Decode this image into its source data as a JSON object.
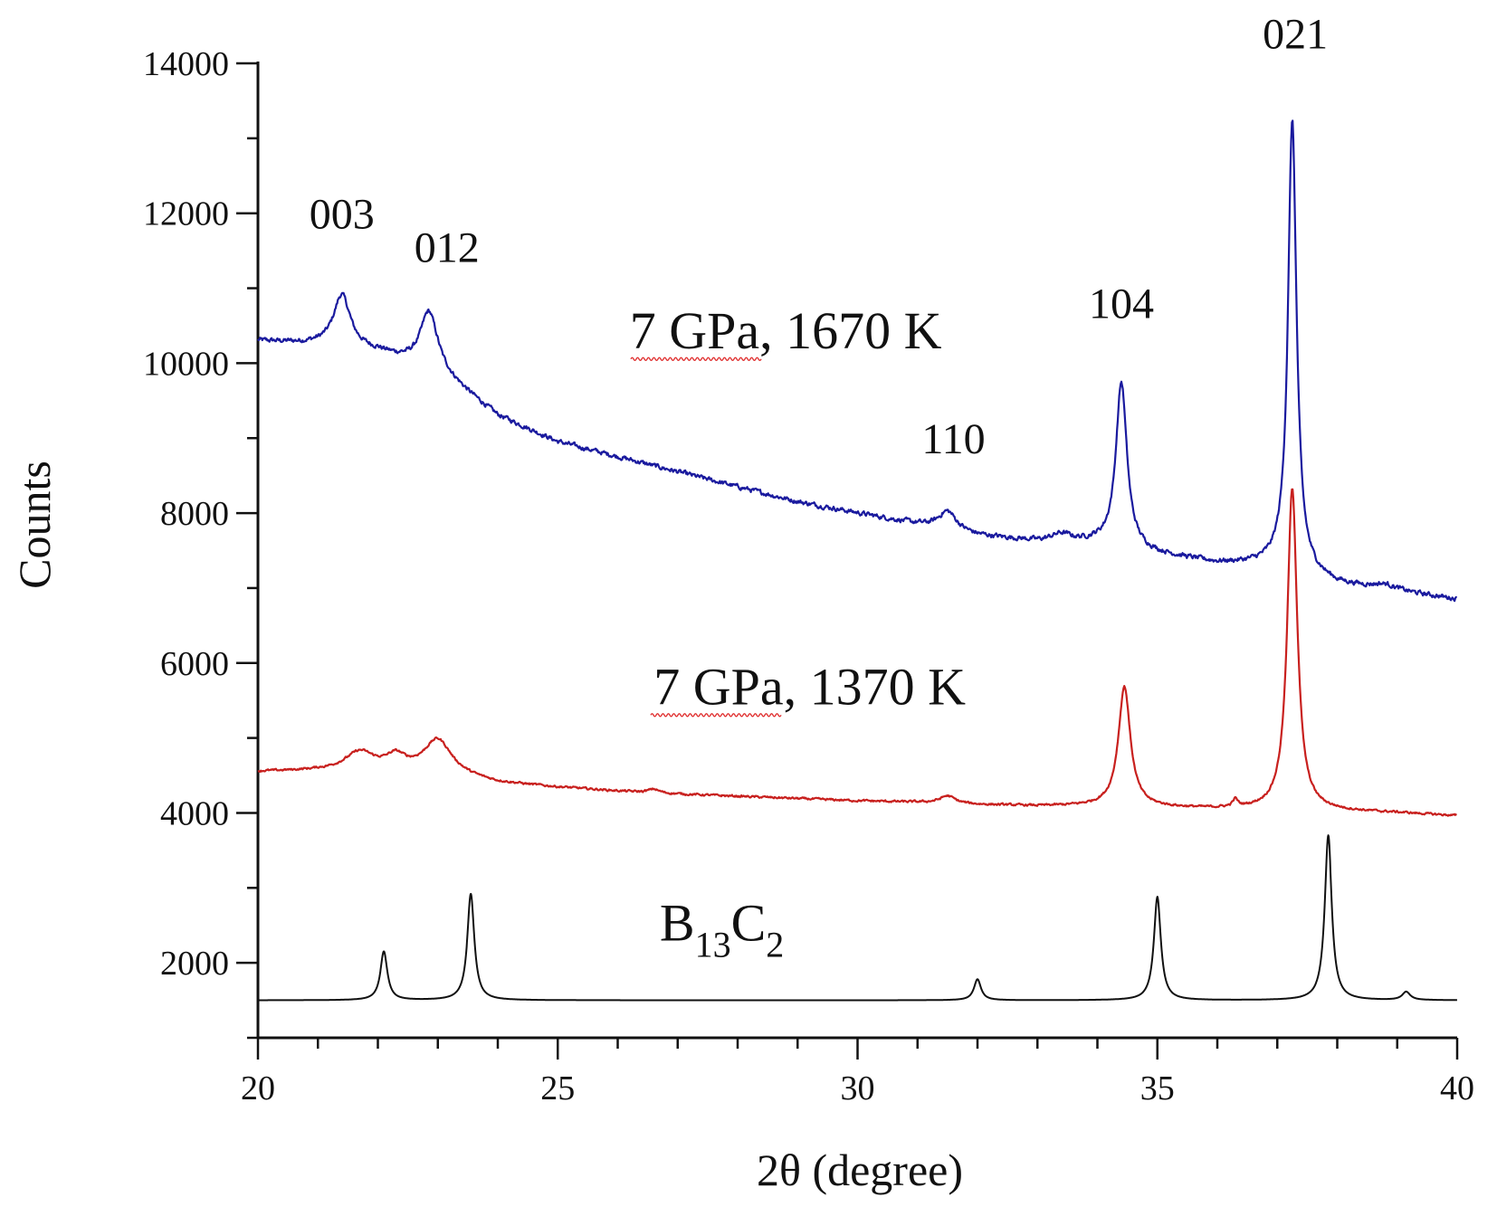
{
  "chart_data": {
    "type": "line",
    "xlabel": "2θ (degree)",
    "ylabel": "Counts",
    "xlim": [
      20,
      40
    ],
    "ylim": [
      1000,
      14000
    ],
    "x_ticks": [
      20,
      25,
      30,
      35,
      40
    ],
    "y_ticks": [
      2000,
      4000,
      6000,
      8000,
      10000,
      12000,
      14000
    ],
    "grid": false,
    "legend": "none",
    "colors": {
      "1670K": "#1a1a9e",
      "1370K": "#c8201e",
      "B13C2": "#111111"
    },
    "series": [
      {
        "key": "1670K",
        "name": "7 GPa, 1670 K",
        "baseline": [
          [
            20,
            10300
          ],
          [
            21,
            10250
          ],
          [
            22,
            10150
          ],
          [
            23,
            9900
          ],
          [
            24,
            9300
          ],
          [
            25,
            8950
          ],
          [
            26,
            8750
          ],
          [
            27,
            8550
          ],
          [
            28,
            8350
          ],
          [
            29,
            8150
          ],
          [
            30,
            8000
          ],
          [
            31,
            7850
          ],
          [
            32,
            7700
          ],
          [
            33,
            7620
          ],
          [
            34,
            7600
          ],
          [
            35,
            7450
          ],
          [
            36,
            7330
          ],
          [
            37,
            7300
          ],
          [
            38,
            7050
          ],
          [
            39,
            6950
          ],
          [
            40,
            6850
          ]
        ],
        "peaks": [
          {
            "pos": 21.4,
            "height": 700,
            "width": 0.17
          },
          {
            "pos": 22.85,
            "height": 750,
            "width": 0.17
          },
          {
            "pos": 31.5,
            "height": 250,
            "width": 0.18
          },
          {
            "pos": 33.4,
            "height": 100,
            "width": 0.2
          },
          {
            "pos": 34.4,
            "height": 2200,
            "width": 0.11
          },
          {
            "pos": 37.25,
            "height": 6000,
            "width": 0.085
          },
          {
            "pos": 38.8,
            "height": 70,
            "width": 0.25
          }
        ],
        "noise": 55
      },
      {
        "key": "1370K",
        "name": "7 GPa, 1370 K",
        "baseline": [
          [
            20,
            4550
          ],
          [
            21,
            4560
          ],
          [
            22,
            4550
          ],
          [
            23,
            4530
          ],
          [
            24,
            4400
          ],
          [
            25,
            4340
          ],
          [
            26,
            4290
          ],
          [
            27,
            4250
          ],
          [
            28,
            4220
          ],
          [
            29,
            4190
          ],
          [
            30,
            4160
          ],
          [
            31,
            4140
          ],
          [
            32,
            4110
          ],
          [
            33,
            4090
          ],
          [
            34,
            4090
          ],
          [
            35,
            4070
          ],
          [
            36,
            4050
          ],
          [
            37,
            4040
          ],
          [
            38,
            4020
          ],
          [
            39,
            4000
          ],
          [
            40,
            3960
          ]
        ],
        "peaks": [
          {
            "pos": 21.7,
            "height": 250,
            "width": 0.3
          },
          {
            "pos": 22.3,
            "height": 180,
            "width": 0.2
          },
          {
            "pos": 23.0,
            "height": 440,
            "width": 0.28
          },
          {
            "pos": 26.6,
            "height": 50,
            "width": 0.1
          },
          {
            "pos": 31.5,
            "height": 100,
            "width": 0.15
          },
          {
            "pos": 34.45,
            "height": 1600,
            "width": 0.12
          },
          {
            "pos": 36.3,
            "height": 100,
            "width": 0.05
          },
          {
            "pos": 37.25,
            "height": 4300,
            "width": 0.1
          }
        ],
        "noise": 25
      },
      {
        "key": "B13C2",
        "name": "B13C2",
        "baseline": [
          [
            20,
            1500
          ],
          [
            40,
            1500
          ]
        ],
        "peaks": [
          {
            "pos": 22.1,
            "height": 650,
            "width": 0.07
          },
          {
            "pos": 23.55,
            "height": 1420,
            "width": 0.07
          },
          {
            "pos": 32.0,
            "height": 280,
            "width": 0.07
          },
          {
            "pos": 35.0,
            "height": 1380,
            "width": 0.07
          },
          {
            "pos": 37.85,
            "height": 2200,
            "width": 0.07
          },
          {
            "pos": 39.15,
            "height": 110,
            "width": 0.08
          }
        ],
        "noise": 0
      }
    ],
    "annotations": [
      {
        "text": "003",
        "x": 21.4,
        "y": 11800
      },
      {
        "text": "012",
        "x": 23.15,
        "y": 11350
      },
      {
        "text": "104",
        "x": 34.4,
        "y": 10600
      },
      {
        "text": "110",
        "x": 31.6,
        "y": 8800
      },
      {
        "text": "021",
        "x": 37.3,
        "y": 14200
      }
    ],
    "series_labels": [
      {
        "key": "1670K",
        "text": "7 GPa, 1670 K",
        "x": 26.2,
        "y": 10200
      },
      {
        "key": "1370K",
        "text": "7 GPa, 1370 K",
        "x": 26.6,
        "y": 5450
      },
      {
        "key": "B13C2",
        "main": "B",
        "sub1": "13",
        "mid": "C",
        "sub2": "2",
        "x": 26.7,
        "y": 2300
      }
    ]
  }
}
